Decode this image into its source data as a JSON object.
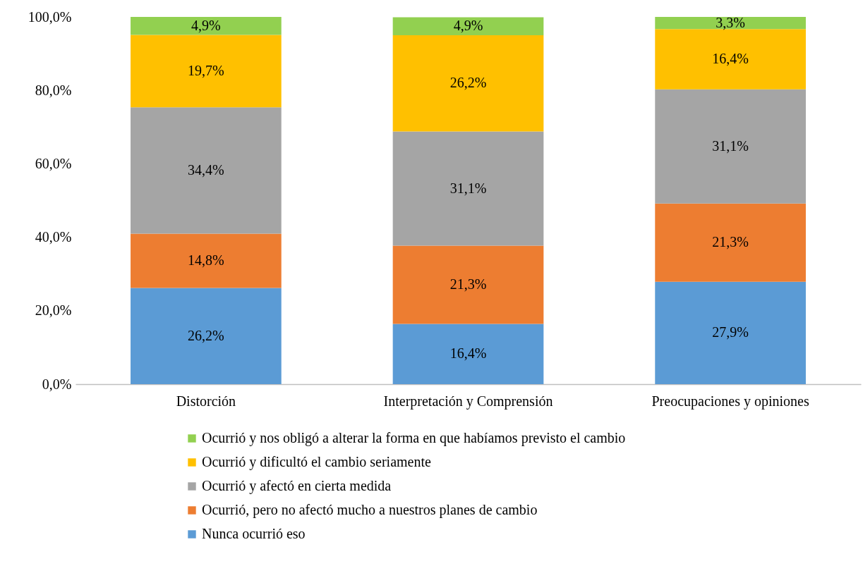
{
  "chart_data": {
    "type": "bar",
    "stacked": true,
    "categories": [
      "Distorción",
      "Interpretación y Comprensión",
      "Preocupaciones y opiniones"
    ],
    "series": [
      {
        "name": "Nunca ocurrió eso",
        "color": "#5b9bd5",
        "values": [
          26.2,
          16.4,
          27.9
        ],
        "value_labels": [
          "26,2%",
          "16,4%",
          "27,9%"
        ]
      },
      {
        "name": "Ocurrió, pero no afectó mucho a nuestros planes de cambio",
        "color": "#ed7d31",
        "values": [
          14.8,
          21.3,
          21.3
        ],
        "value_labels": [
          "14,8%",
          "21,3%",
          "21,3%"
        ]
      },
      {
        "name": "Ocurrió y afectó en cierta medida",
        "color": "#a5a5a5",
        "values": [
          34.4,
          31.1,
          31.1
        ],
        "value_labels": [
          "34,4%",
          "31,1%",
          "31,1%"
        ]
      },
      {
        "name": "Ocurrió y dificultó el cambio seriamente",
        "color": "#ffc000",
        "values": [
          19.7,
          26.2,
          16.4
        ],
        "value_labels": [
          "19,7%",
          "26,2%",
          "16,4%"
        ]
      },
      {
        "name": "Ocurrió y nos obligó a alterar la forma en que habíamos previsto el cambio",
        "color": "#92d050",
        "values": [
          4.9,
          4.9,
          3.3
        ],
        "value_labels": [
          "4,9%",
          "4,9%",
          "3,3%"
        ]
      }
    ],
    "ylim": [
      0,
      100
    ],
    "yticks": [
      {
        "value": 0,
        "label": "0,0%"
      },
      {
        "value": 20,
        "label": "20,0%"
      },
      {
        "value": 40,
        "label": "40,0%"
      },
      {
        "value": 60,
        "label": "60,0%"
      },
      {
        "value": 80,
        "label": "80,0%"
      },
      {
        "value": 100,
        "label": "100,0%"
      }
    ],
    "grid": false,
    "legend": "bottom"
  }
}
